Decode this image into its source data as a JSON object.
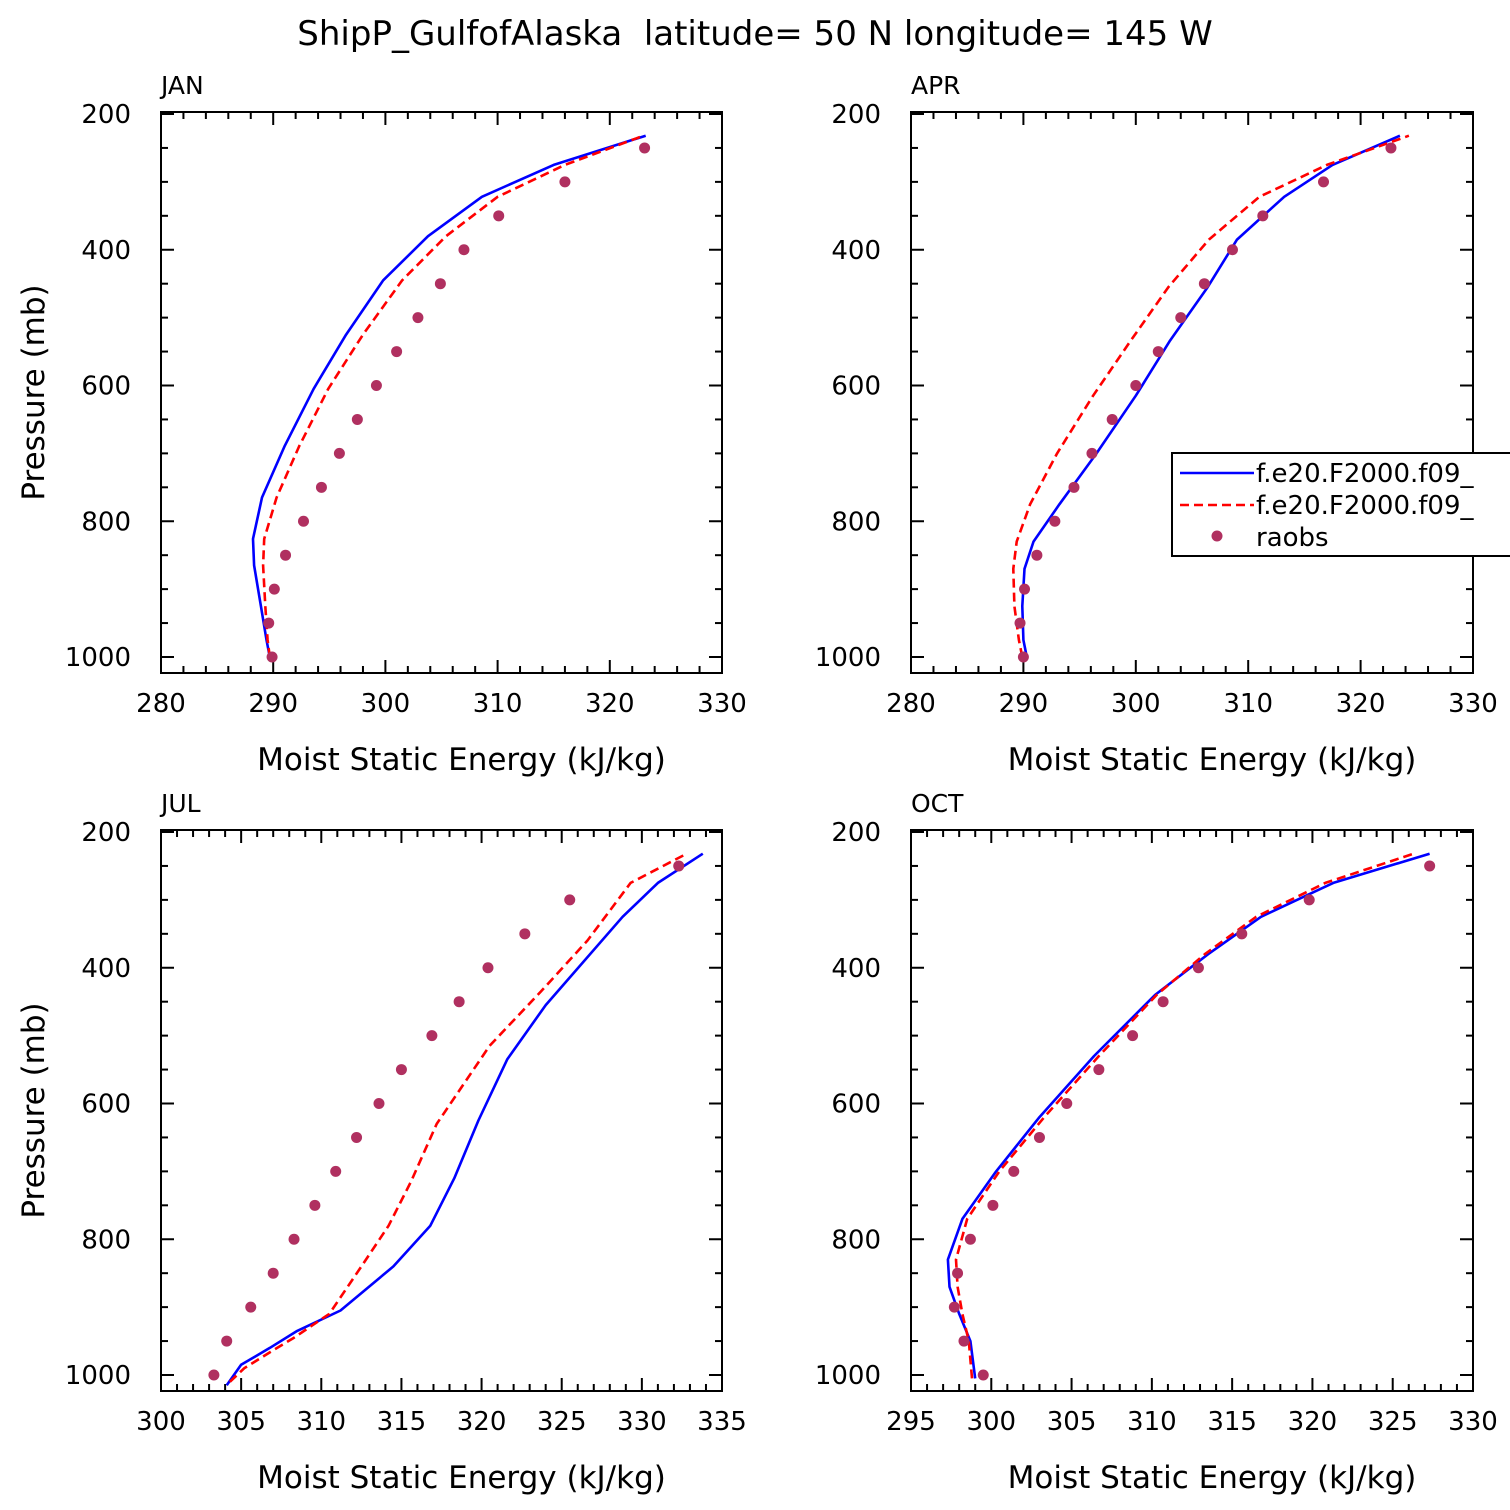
{
  "figure": {
    "title": "ShipP_GulfofAlaska  latitude= 50 N longitude= 145 W"
  },
  "legend": {
    "entries": [
      {
        "label": "f.e20.F2000.f09_",
        "color": "#0000ff",
        "style": "solid"
      },
      {
        "label": "f.e20.F2000.f09_",
        "color": "#ff0000",
        "style": "dashed"
      },
      {
        "label": "raobs",
        "color": "#b03060",
        "style": "dots"
      }
    ]
  },
  "colors": {
    "model_solid": "#0000ff",
    "model_dashed": "#ff0000",
    "raobs": "#b03060"
  },
  "chart_data": [
    {
      "type": "line",
      "title": "JAN",
      "xlabel": "Moist Static Energy (kJ/kg)",
      "ylabel": "Pressure (mb)",
      "xlim": [
        280,
        330
      ],
      "ylim": [
        1000,
        200
      ],
      "xticks": [
        280,
        290,
        300,
        310,
        320,
        330
      ],
      "yticks": [
        200,
        400,
        600,
        800,
        1000
      ],
      "series": [
        {
          "x": [
            289.7,
            289.4,
            288.9,
            288.3,
            288.2,
            289.0,
            291.0,
            293.6,
            296.5,
            299.8,
            303.8,
            308.6,
            315.0,
            323.2
          ],
          "y": [
            1000,
            975,
            925,
            865,
            826,
            765,
            690,
            605,
            525,
            445,
            380,
            322,
            275,
            232
          ]
        },
        {
          "x": [
            289.7,
            289.5,
            289.3,
            289.1,
            289.2,
            290.3,
            292.3,
            294.9,
            298.0,
            301.5,
            305.4,
            310.0,
            316.0,
            323.0
          ],
          "y": [
            1000,
            975,
            925,
            865,
            826,
            765,
            690,
            605,
            525,
            445,
            380,
            322,
            275,
            232
          ]
        },
        {
          "x": [
            289.9,
            289.6,
            290.1,
            291.1,
            292.7,
            294.3,
            295.9,
            297.5,
            299.2,
            301.0,
            302.9,
            304.9,
            307.0,
            310.1,
            316.0,
            323.1
          ],
          "y": [
            1000,
            950,
            900,
            850,
            800,
            750,
            700,
            650,
            600,
            550,
            500,
            450,
            400,
            350,
            300,
            250
          ]
        }
      ]
    },
    {
      "type": "line",
      "title": "APR",
      "xlabel": "Moist Static Energy (kJ/kg)",
      "ylabel": "",
      "xlim": [
        280,
        330
      ],
      "ylim": [
        1000,
        200
      ],
      "xticks": [
        280,
        290,
        300,
        310,
        320,
        330
      ],
      "yticks": [
        200,
        400,
        600,
        800,
        1000
      ],
      "series": [
        {
          "x": [
            290.3,
            290.0,
            289.9,
            290.1,
            290.9,
            293.2,
            296.5,
            300.0,
            303.0,
            306.4,
            309.0,
            313.2,
            317.5,
            323.5
          ],
          "y": [
            1000,
            975,
            925,
            870,
            830,
            775,
            700,
            615,
            535,
            455,
            385,
            322,
            275,
            232
          ]
        },
        {
          "x": [
            289.9,
            289.6,
            289.2,
            289.1,
            289.4,
            290.6,
            293.0,
            296.2,
            299.5,
            302.9,
            306.5,
            311.0,
            317.0,
            324.3
          ],
          "y": [
            1000,
            975,
            925,
            870,
            830,
            775,
            700,
            615,
            535,
            455,
            385,
            322,
            275,
            232
          ]
        },
        {
          "x": [
            290.0,
            289.7,
            290.1,
            291.2,
            292.8,
            294.5,
            296.1,
            297.9,
            300.0,
            302.0,
            304.0,
            306.1,
            308.6,
            311.3,
            316.7,
            322.7
          ],
          "y": [
            1000,
            950,
            900,
            850,
            800,
            750,
            700,
            650,
            600,
            550,
            500,
            450,
            400,
            350,
            300,
            250
          ]
        }
      ]
    },
    {
      "type": "line",
      "title": "JUL",
      "xlabel": "Moist Static Energy (kJ/kg)",
      "ylabel": "Pressure (mb)",
      "xlim": [
        300,
        335
      ],
      "ylim": [
        1000,
        200
      ],
      "xticks": [
        300,
        305,
        310,
        315,
        320,
        325,
        330,
        335
      ],
      "yticks": [
        200,
        400,
        600,
        800,
        1000
      ],
      "series": [
        {
          "x": [
            304.1,
            305.0,
            306.8,
            308.5,
            311.2,
            314.5,
            316.8,
            318.3,
            319.8,
            321.6,
            324.0,
            328.8,
            331.0,
            333.8
          ],
          "y": [
            1015,
            985,
            960,
            935,
            905,
            840,
            780,
            710,
            625,
            535,
            455,
            325,
            275,
            232
          ]
        },
        {
          "x": [
            304.3,
            305.2,
            306.9,
            308.3,
            310.5,
            312.5,
            314.2,
            315.6,
            317.2,
            320.5,
            323.7,
            326.6,
            329.3,
            332.8
          ],
          "y": [
            1010,
            990,
            965,
            945,
            910,
            840,
            780,
            715,
            630,
            515,
            435,
            360,
            275,
            232
          ]
        },
        {
          "x": [
            303.3,
            304.1,
            305.6,
            307.0,
            308.3,
            309.6,
            310.9,
            312.2,
            313.6,
            315.0,
            316.9,
            318.6,
            320.4,
            322.7,
            325.5,
            332.3
          ],
          "y": [
            1000,
            950,
            900,
            850,
            800,
            750,
            700,
            650,
            600,
            550,
            500,
            450,
            400,
            350,
            300,
            250
          ]
        }
      ]
    },
    {
      "type": "line",
      "title": "OCT",
      "xlabel": "Moist Static Energy (kJ/kg)",
      "ylabel": "",
      "xlim": [
        295,
        330
      ],
      "ylim": [
        1000,
        200
      ],
      "xticks": [
        295,
        300,
        305,
        310,
        315,
        320,
        325,
        330
      ],
      "yticks": [
        200,
        400,
        600,
        800,
        1000
      ],
      "series": [
        {
          "x": [
            299.0,
            298.7,
            298.0,
            297.4,
            297.3,
            298.2,
            300.3,
            303.0,
            306.4,
            310.2,
            313.5,
            316.8,
            321.3,
            327.3
          ],
          "y": [
            1005,
            950,
            910,
            870,
            830,
            770,
            700,
            620,
            530,
            440,
            380,
            325,
            275,
            232
          ]
        },
        {
          "x": [
            298.8,
            298.6,
            298.2,
            297.9,
            297.8,
            298.5,
            300.5,
            303.3,
            306.7,
            310.3,
            313.3,
            316.5,
            320.8,
            326.3
          ],
          "y": [
            1005,
            950,
            910,
            870,
            830,
            770,
            700,
            620,
            530,
            440,
            380,
            325,
            275,
            232
          ]
        },
        {
          "x": [
            299.5,
            298.3,
            297.7,
            297.9,
            298.7,
            300.1,
            301.4,
            303.0,
            304.7,
            306.7,
            308.8,
            310.7,
            312.9,
            315.6,
            319.8,
            327.3
          ],
          "y": [
            1000,
            950,
            900,
            850,
            800,
            750,
            700,
            650,
            600,
            550,
            500,
            450,
            400,
            350,
            300,
            250
          ]
        }
      ]
    }
  ]
}
